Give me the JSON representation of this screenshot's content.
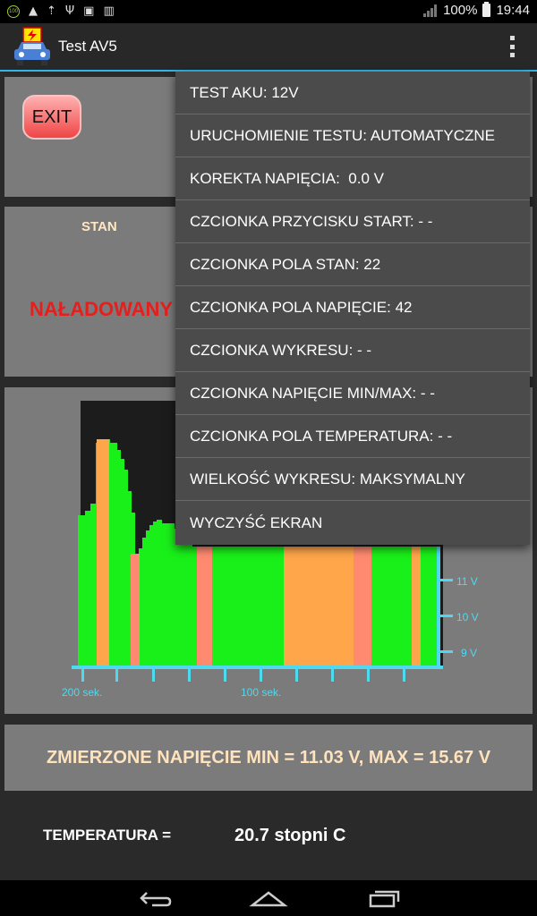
{
  "status_bar": {
    "battery_text": "100%",
    "time": "19:44"
  },
  "action_bar": {
    "title": "Test AV5"
  },
  "exit_button": {
    "label": "EXIT"
  },
  "stan": {
    "label": "STAN",
    "value": "NAŁADOWANY"
  },
  "chart_data": {
    "type": "bar",
    "x_tick_labels": [
      "200 sek.",
      "100 sek."
    ],
    "y_tick_labels": [
      "11 V",
      "10 V",
      "9 V"
    ],
    "colors": {
      "green": "#19ef19",
      "orange": "#ffa54a",
      "salmon": "#ff8a70",
      "background": "#1c1c1c",
      "axis": "#4fd9f0"
    }
  },
  "measured": {
    "text": "ZMIERZONE NAPIĘCIE MIN = 11.03 V, MAX = 15.67 V"
  },
  "temperature": {
    "label": "TEMPERATURA  =",
    "value": "20.7 stopni C"
  },
  "menu": {
    "items": [
      "TEST AKU: 12V",
      "URUCHOMIENIE TESTU: AUTOMATYCZNE",
      "KOREKTA NAPIĘCIA:  0.0 V",
      "CZCIONKA PRZYCISKU START: - -",
      "CZCIONKA POLA STAN: 22",
      "CZCIONKA POLA NAPIĘCIE: 42",
      "CZCIONKA WYKRESU: - -",
      "CZCIONKA NAPIĘCIE MIN/MAX: - -",
      "CZCIONKA POLA TEMPERATURA: - -",
      "WIELKOŚĆ WYKRESU: MAKSYMALNY",
      "WYCZYŚĆ EKRAN"
    ]
  }
}
